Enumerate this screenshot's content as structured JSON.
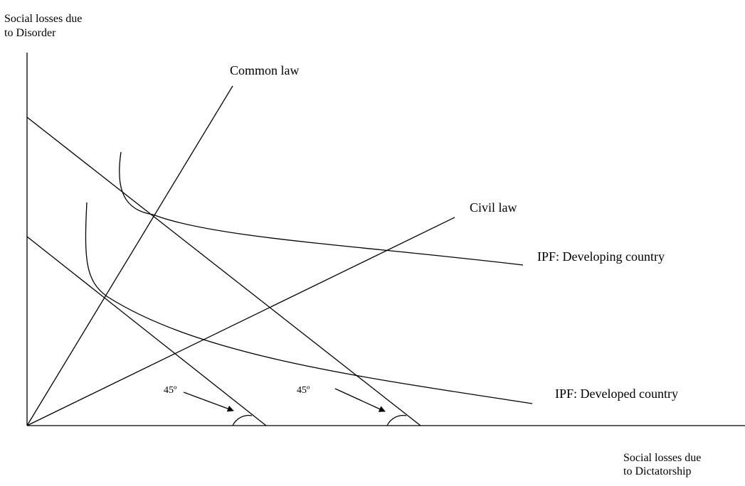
{
  "y_axis_label": [
    "Social losses due",
    "to Disorder"
  ],
  "x_axis_label": [
    "Social losses due",
    "to Dictatorship"
  ],
  "rays": [
    {
      "label": "Common law"
    },
    {
      "label": "Civil law"
    }
  ],
  "curves": [
    {
      "label": "IPF: Developing country"
    },
    {
      "label": "IPF: Developed country"
    }
  ],
  "angles": [
    "45º",
    "45º"
  ]
}
